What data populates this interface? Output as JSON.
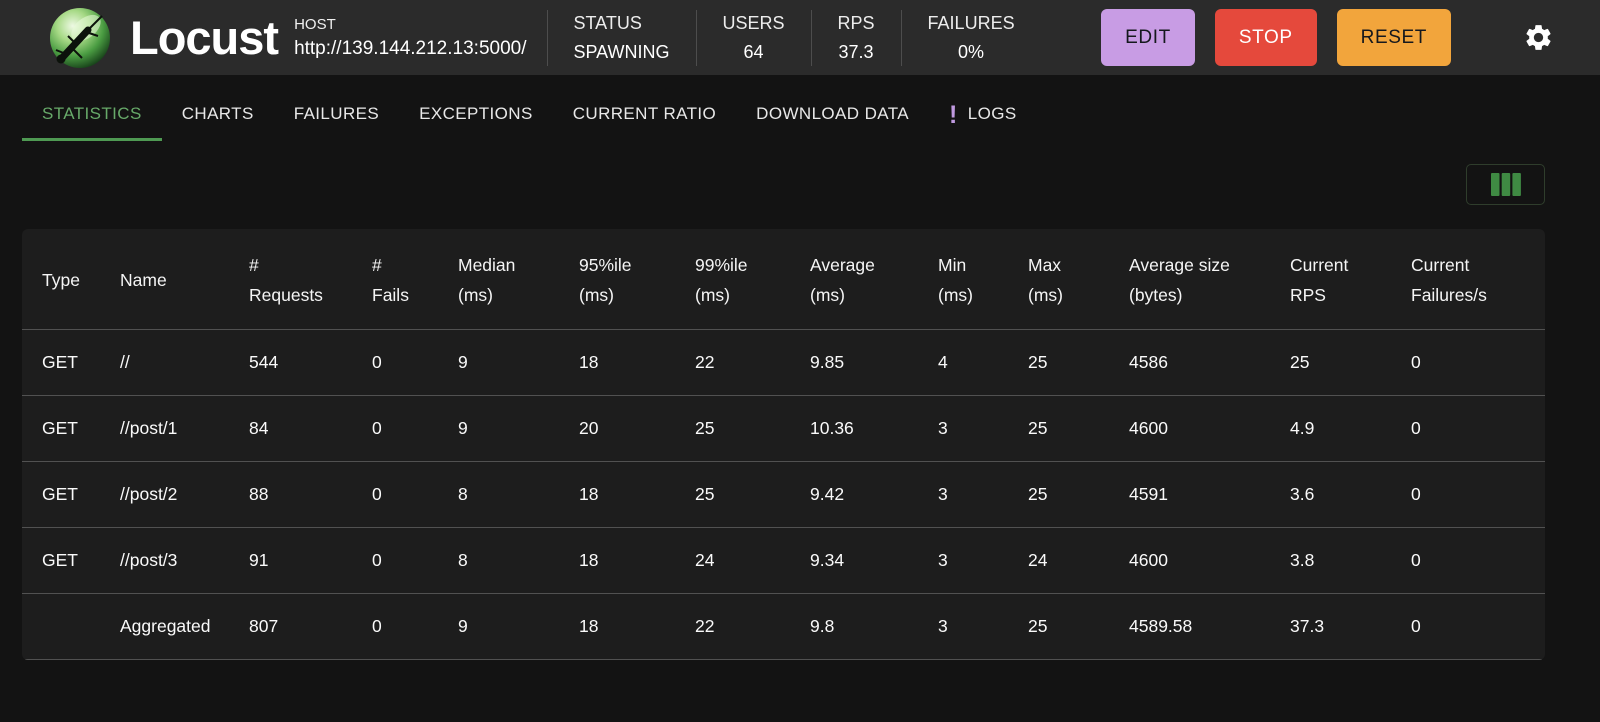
{
  "header": {
    "app_title": "Locust",
    "host_label": "HOST",
    "host_url": "http://139.144.212.13:5000/",
    "stats": [
      {
        "label": "STATUS",
        "value": "SPAWNING"
      },
      {
        "label": "USERS",
        "value": "64"
      },
      {
        "label": "RPS",
        "value": "37.3"
      },
      {
        "label": "FAILURES",
        "value": "0%"
      }
    ],
    "buttons": [
      {
        "label": "EDIT",
        "color": "#c89ce4",
        "text_color": "#15181d"
      },
      {
        "label": "STOP",
        "color": "#e5493c",
        "text_color": "#ffffff"
      },
      {
        "label": "RESET",
        "color": "#f2a53c",
        "text_color": "#15181d"
      }
    ]
  },
  "tabs": [
    {
      "label": "STATISTICS",
      "active": true
    },
    {
      "label": "CHARTS",
      "active": false
    },
    {
      "label": "FAILURES",
      "active": false
    },
    {
      "label": "EXCEPTIONS",
      "active": false
    },
    {
      "label": "CURRENT RATIO",
      "active": false
    },
    {
      "label": "DOWNLOAD DATA",
      "active": false
    },
    {
      "label": "LOGS",
      "active": false,
      "badge": "!"
    }
  ],
  "colors": {
    "active_tab": "#67a969",
    "tab_indicator": "#4f9a53",
    "logs_badge": "#c09ae0",
    "columns_icon": "#3f8a43"
  },
  "table": {
    "columns": [
      {
        "lines": [
          "Type"
        ]
      },
      {
        "lines": [
          "Name"
        ]
      },
      {
        "lines": [
          "#",
          "Requests"
        ]
      },
      {
        "lines": [
          "#",
          "Fails"
        ]
      },
      {
        "lines": [
          "Median",
          "(ms)"
        ]
      },
      {
        "lines": [
          "95%ile",
          "(ms)"
        ]
      },
      {
        "lines": [
          "99%ile",
          "(ms)"
        ]
      },
      {
        "lines": [
          "Average",
          "(ms)"
        ]
      },
      {
        "lines": [
          "Min",
          "(ms)"
        ]
      },
      {
        "lines": [
          "Max",
          "(ms)"
        ]
      },
      {
        "lines": [
          "Average size",
          "(bytes)"
        ]
      },
      {
        "lines": [
          "Current",
          "RPS"
        ]
      },
      {
        "lines": [
          "Current",
          "Failures/s"
        ]
      }
    ],
    "rows": [
      [
        "GET",
        "//",
        "544",
        "0",
        "9",
        "18",
        "22",
        "9.85",
        "4",
        "25",
        "4586",
        "25",
        "0"
      ],
      [
        "GET",
        "//post/1",
        "84",
        "0",
        "9",
        "20",
        "25",
        "10.36",
        "3",
        "25",
        "4600",
        "4.9",
        "0"
      ],
      [
        "GET",
        "//post/2",
        "88",
        "0",
        "8",
        "18",
        "25",
        "9.42",
        "3",
        "25",
        "4591",
        "3.6",
        "0"
      ],
      [
        "GET",
        "//post/3",
        "91",
        "0",
        "8",
        "18",
        "24",
        "9.34",
        "3",
        "24",
        "4600",
        "3.8",
        "0"
      ],
      [
        "",
        "Aggregated",
        "807",
        "0",
        "9",
        "18",
        "22",
        "9.8",
        "3",
        "25",
        "4589.58",
        "37.3",
        "0"
      ]
    ]
  }
}
